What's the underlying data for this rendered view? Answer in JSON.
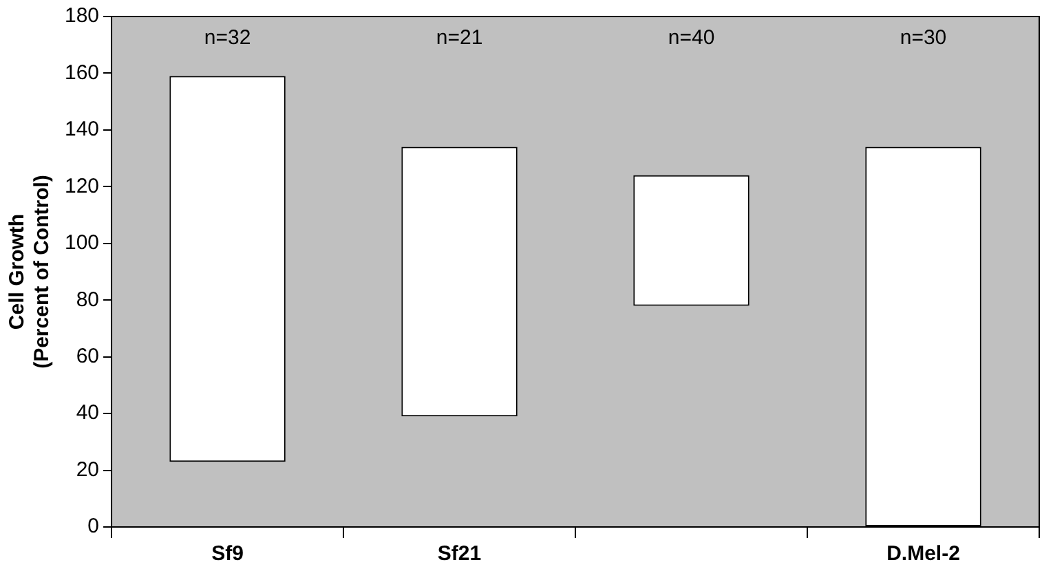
{
  "chart_data": {
    "type": "bar",
    "ylabel": "Cell Growth\n(Percent of Control)",
    "categories": [
      "Sf9",
      "Sf21",
      null,
      "D.Mel-2"
    ],
    "base": [
      23,
      39,
      78,
      0
    ],
    "values": [
      136,
      95,
      46,
      134
    ],
    "color": "#ffffff",
    "ylim": [
      0,
      180
    ],
    "yticks": [
      0,
      20,
      40,
      60,
      80,
      100,
      120,
      140,
      160,
      180
    ],
    "grid": false,
    "legend": false,
    "annotations": [
      "n=32",
      "n=21",
      "n=40",
      "n=30"
    ]
  }
}
